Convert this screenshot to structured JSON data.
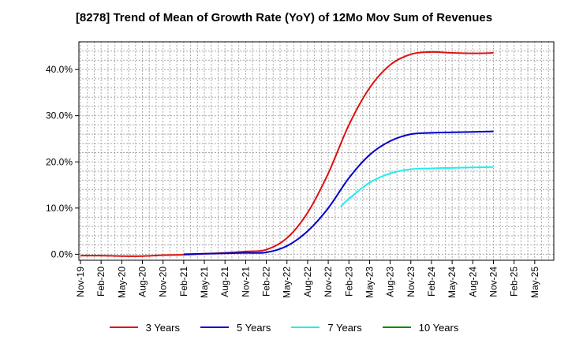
{
  "chart_data": {
    "type": "line",
    "title": "[8278]  Trend of Mean of Growth Rate (YoY) of 12Mo Mov Sum of Revenues",
    "xlabel": "",
    "ylabel": "",
    "ylim": [
      -1.3,
      46.0
    ],
    "y_ticks": [
      0,
      10,
      20,
      30,
      40
    ],
    "y_tick_labels": [
      "0.0%",
      "10.0%",
      "20.0%",
      "30.0%",
      "40.0%"
    ],
    "x_tick_labels": [
      "Nov-19",
      "Feb-20",
      "May-20",
      "Aug-20",
      "Nov-20",
      "Feb-21",
      "May-21",
      "Aug-21",
      "Nov-21",
      "Feb-22",
      "May-22",
      "Aug-22",
      "Nov-22",
      "Feb-23",
      "May-23",
      "Aug-23",
      "Nov-23",
      "Feb-24",
      "May-24",
      "Aug-24",
      "Nov-24",
      "Feb-25",
      "May-25"
    ],
    "grid": true,
    "legend_position": "bottom",
    "series": [
      {
        "name": "3 Years",
        "color": "#dd1111",
        "points": [
          [
            0,
            -0.3
          ],
          [
            1,
            -0.3
          ],
          [
            2,
            -0.4
          ],
          [
            3,
            -0.4
          ],
          [
            4,
            -0.2
          ],
          [
            5,
            -0.1
          ],
          [
            6,
            0.1
          ],
          [
            7,
            0.3
          ],
          [
            8,
            0.6
          ],
          [
            9,
            1.0
          ],
          [
            10,
            3.5
          ],
          [
            11,
            9.0
          ],
          [
            12,
            17.5
          ],
          [
            13,
            28.0
          ],
          [
            14,
            36.0
          ],
          [
            15,
            41.0
          ],
          [
            16,
            43.3
          ],
          [
            17,
            43.8
          ],
          [
            18,
            43.6
          ],
          [
            19,
            43.5
          ],
          [
            20,
            43.6
          ]
        ]
      },
      {
        "name": "5 Years",
        "color": "#0000cc",
        "points": [
          [
            5,
            0.0
          ],
          [
            6,
            0.1
          ],
          [
            7,
            0.2
          ],
          [
            8,
            0.3
          ],
          [
            9,
            0.4
          ],
          [
            10,
            1.8
          ],
          [
            11,
            5.0
          ],
          [
            12,
            10.0
          ],
          [
            13,
            16.5
          ],
          [
            14,
            21.5
          ],
          [
            15,
            24.5
          ],
          [
            16,
            26.0
          ],
          [
            17,
            26.3
          ],
          [
            18,
            26.4
          ],
          [
            19,
            26.5
          ],
          [
            20,
            26.6
          ]
        ]
      },
      {
        "name": "7 Years",
        "color": "#22eeee",
        "points": [
          [
            12.6,
            10.3
          ],
          [
            13,
            12.0
          ],
          [
            14,
            15.5
          ],
          [
            15,
            17.5
          ],
          [
            16,
            18.4
          ],
          [
            17,
            18.6
          ],
          [
            18,
            18.7
          ],
          [
            19,
            18.8
          ],
          [
            20,
            18.9
          ]
        ]
      },
      {
        "name": "10 Years",
        "color": "#008800",
        "points": []
      }
    ]
  }
}
